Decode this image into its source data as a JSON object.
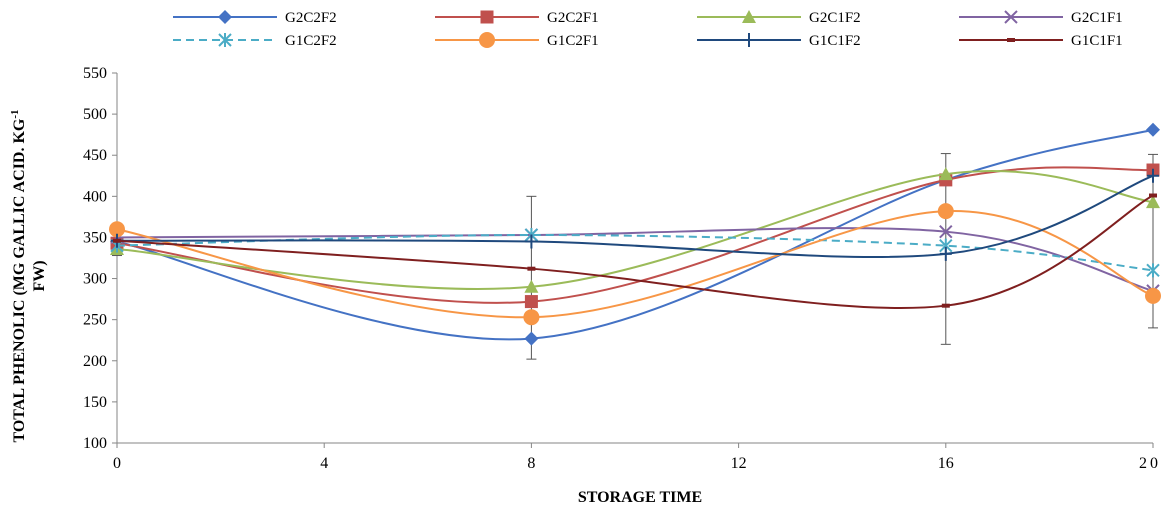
{
  "chart_data": {
    "type": "line",
    "xlabel": "STORAGE TIME",
    "ylabel_line1": "TOTAL PHENOLIC (MG GALLIC ACID. KG",
    "ylabel_sup": "-1",
    "ylabel_line2": "FW)",
    "xlim": [
      0,
      20
    ],
    "ylim": [
      100,
      550
    ],
    "x_ticks": [
      "0",
      "4",
      "8",
      "12",
      "16",
      "20"
    ],
    "y_ticks": [
      "100",
      "150",
      "200",
      "250",
      "300",
      "350",
      "400",
      "450",
      "500",
      "550"
    ],
    "x": [
      0,
      8,
      16,
      20
    ],
    "legend_position": "top",
    "grid": false,
    "series": [
      {
        "name": "G2C2F2",
        "values": [
          345,
          227,
          420,
          481
        ],
        "color": "#4472C4",
        "marker": "diamond",
        "dash": false
      },
      {
        "name": "G2C2F1",
        "values": [
          343,
          272,
          420,
          432
        ],
        "color": "#C0504D",
        "marker": "square",
        "dash": false
      },
      {
        "name": "G2C1F2",
        "values": [
          336,
          290,
          427,
          393
        ],
        "color": "#9BBB59",
        "marker": "triangle",
        "dash": false
      },
      {
        "name": "G2C1F1",
        "values": [
          350,
          353,
          357,
          285
        ],
        "color": "#8064A2",
        "marker": "x",
        "dash": false
      },
      {
        "name": "G1C2F2",
        "values": [
          340,
          353,
          340,
          310
        ],
        "color": "#4BACC6",
        "marker": "star",
        "dash": true
      },
      {
        "name": "G1C2F1",
        "values": [
          360,
          253,
          382,
          279
        ],
        "color": "#F79646",
        "marker": "circle",
        "dash": false
      },
      {
        "name": "G1C1F2",
        "values": [
          346,
          345,
          330,
          425
        ],
        "color": "#1F497D",
        "marker": "plus",
        "dash": false
      },
      {
        "name": "G1C1F1",
        "values": [
          346,
          312,
          267,
          401
        ],
        "color": "#7F1F1F",
        "marker": "dash",
        "dash": false
      }
    ],
    "error_bars": [
      {
        "x": 0,
        "low": 328,
        "high": 365
      },
      {
        "x": 8,
        "low": 202,
        "high": 400
      },
      {
        "x": 16,
        "low": 220,
        "high": 452
      },
      {
        "x": 20,
        "low": 240,
        "high": 451
      }
    ]
  }
}
